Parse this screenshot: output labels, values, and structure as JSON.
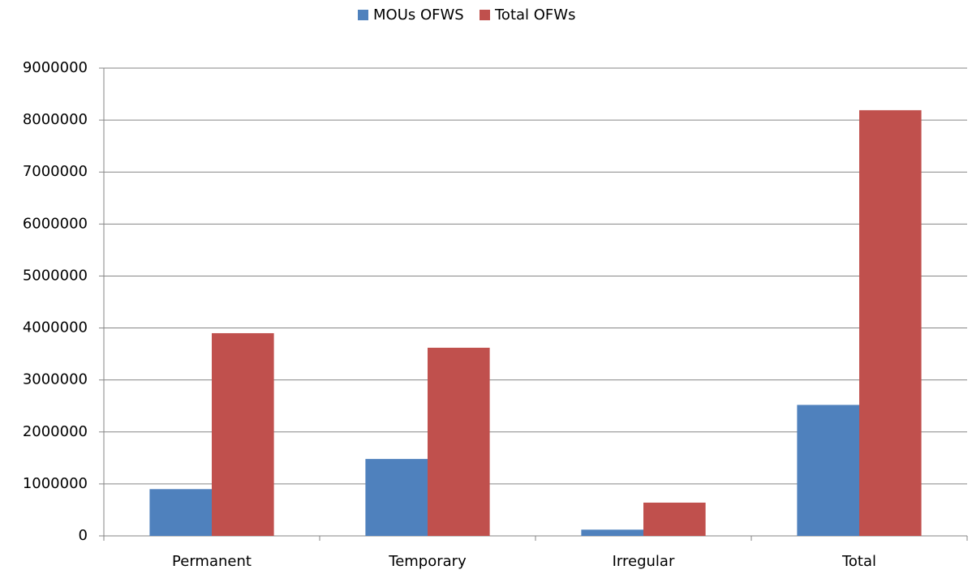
{
  "chart_data": {
    "type": "bar",
    "categories": [
      "Permanent",
      "Temporary",
      "Irregular",
      "Total"
    ],
    "series": [
      {
        "name": "MOUs OFWS",
        "color": "#4f81bd",
        "values": [
          900000,
          1480000,
          120000,
          2520000
        ]
      },
      {
        "name": "Total OFWs",
        "color": "#c0504d",
        "values": [
          3900000,
          3620000,
          640000,
          8190000
        ]
      }
    ],
    "ylim": [
      0,
      9000000
    ],
    "yticks": [
      0,
      1000000,
      2000000,
      3000000,
      4000000,
      5000000,
      6000000,
      7000000,
      8000000,
      9000000
    ],
    "grid": true,
    "legend": "top"
  }
}
